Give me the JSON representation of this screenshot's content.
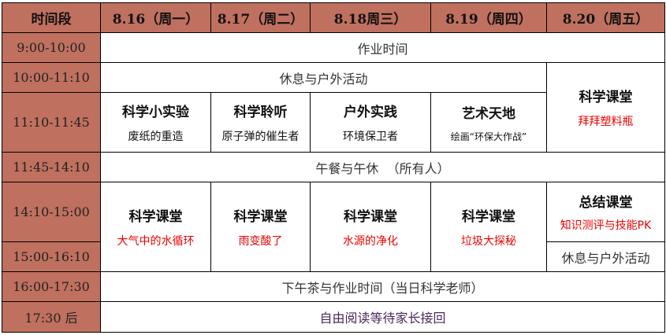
{
  "header": [
    "时间段",
    "8.16（周一）",
    "8.17（周二）",
    "8.18周三）",
    "8.19（周四）",
    "8.20（周五）"
  ],
  "times": [
    "9:00-10:00",
    "10:00-11:10",
    "11:10-11:45",
    "11:45-14:10",
    "14:10-15:00",
    "15:00-16:10",
    "16:00-17:30",
    "17:30 后"
  ],
  "row_homework": "作业时间",
  "row_rest": "休息与户外活动",
  "fri_morning": {
    "title": "科学课堂",
    "topic": "拜拜塑料瓶"
  },
  "morning_classes": [
    {
      "title": "科学小实验",
      "topic": "废纸的重造"
    },
    {
      "title": "科学聆听",
      "topic": "原子弹的催生者"
    },
    {
      "title": "户外实践",
      "topic": "环境保卫者"
    },
    {
      "title": "艺术天地",
      "topic": "绘画“环保大作战”"
    }
  ],
  "row_lunch": "午餐与午休  （所有人）",
  "afternoon_classes": [
    {
      "title": "科学课堂",
      "topic": "大气中的水循环"
    },
    {
      "title": "科学课堂",
      "topic": "雨变酸了"
    },
    {
      "title": "科学课堂",
      "topic": "水源的净化"
    },
    {
      "title": "科学课堂",
      "topic": "垃圾大探秘"
    }
  ],
  "fri_afternoon": {
    "title": "总结课堂",
    "topic": "知识测评与技能PK",
    "rest": "休息与户外活动"
  },
  "row_tea": "下午茶与作业时间（当日科学老师）",
  "row_pickup": "自由阅读等待家长接回",
  "colors": {
    "header_bg": "#c0705f",
    "topic": "#e00000"
  }
}
